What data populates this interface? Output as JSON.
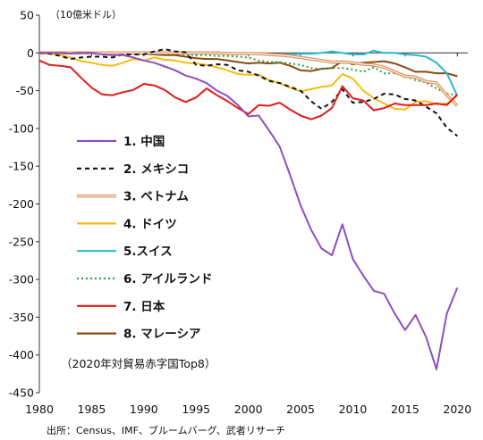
{
  "chart_data": {
    "type": "line",
    "unit_label": "（10億米ドル）",
    "note": "（2020年対貿易赤字国Top8）",
    "source": "出所：Census、IMF、ブルームバーグ、武者リサーチ",
    "xlim": [
      1980,
      2021
    ],
    "ylim": [
      -450,
      50
    ],
    "x_ticks": [
      "1980",
      "1985",
      "1990",
      "1995",
      "2000",
      "2005",
      "2010",
      "2015",
      "2020"
    ],
    "y_ticks": [
      "50",
      "0",
      "-50",
      "-100",
      "-150",
      "-200",
      "-250",
      "-300",
      "-350",
      "-400",
      "-450"
    ],
    "grid": false,
    "legend_position": "middle-left",
    "years": [
      1980,
      1981,
      1982,
      1983,
      1984,
      1985,
      1986,
      1987,
      1988,
      1989,
      1990,
      1991,
      1992,
      1993,
      1994,
      1995,
      1996,
      1997,
      1998,
      1999,
      2000,
      2001,
      2002,
      2003,
      2004,
      2005,
      2006,
      2007,
      2008,
      2009,
      2010,
      2011,
      2012,
      2013,
      2014,
      2015,
      2016,
      2017,
      2018,
      2019,
      2020
    ],
    "series": [
      {
        "name": "1. 中国",
        "color": "#8e4fbf",
        "dash": "solid",
        "values": [
          0,
          0,
          0,
          -1,
          0,
          0,
          -2,
          -3,
          -3,
          -6,
          -10,
          -13,
          -18,
          -23,
          -30,
          -34,
          -40,
          -50,
          -57,
          -69,
          -84,
          -83,
          -103,
          -124,
          -162,
          -202,
          -234,
          -259,
          -268,
          -227,
          -273,
          -295,
          -315,
          -319,
          -345,
          -367,
          -347,
          -376,
          -419,
          -345,
          -311
        ]
      },
      {
        "name": "2. メキシコ",
        "color": "#111111",
        "dash": "5,4",
        "values": [
          0,
          -1,
          -4,
          -8,
          -6,
          -5,
          -5,
          -6,
          -2,
          -2,
          -2,
          2,
          5,
          2,
          1,
          -16,
          -17,
          -15,
          -16,
          -23,
          -25,
          -30,
          -37,
          -40,
          -45,
          -50,
          -64,
          -74,
          -65,
          -48,
          -66,
          -65,
          -61,
          -54,
          -55,
          -61,
          -63,
          -71,
          -80,
          -99,
          -110
        ]
      },
      {
        "name": "3. ベトナム",
        "color": "#d9925a",
        "dash": "double",
        "values": [
          0,
          0,
          0,
          0,
          0,
          0,
          0,
          0,
          0,
          0,
          0,
          0,
          0,
          0,
          0,
          0,
          0,
          0,
          -1,
          -1,
          -1,
          -1,
          -2,
          -3,
          -4,
          -6,
          -8,
          -10,
          -12,
          -12,
          -13,
          -15,
          -16,
          -19,
          -25,
          -31,
          -32,
          -38,
          -40,
          -56,
          -70
        ]
      },
      {
        "name": "4. ドイツ",
        "color": "#f5bc10",
        "dash": "solid",
        "values": [
          -1,
          -1,
          -3,
          -6,
          -11,
          -13,
          -16,
          -17,
          -13,
          -8,
          -10,
          -6,
          -9,
          -10,
          -13,
          -14,
          -16,
          -19,
          -23,
          -28,
          -29,
          -29,
          -36,
          -40,
          -46,
          -51,
          -48,
          -45,
          -43,
          -28,
          -34,
          -50,
          -60,
          -67,
          -74,
          -75,
          -65,
          -64,
          -68,
          -67,
          -57
        ]
      },
      {
        "name": "5.スイス",
        "color": "#2bb6d6",
        "dash": "solid",
        "values": [
          1,
          0,
          0,
          0,
          0,
          0,
          0,
          -1,
          -1,
          0,
          0,
          0,
          0,
          0,
          0,
          0,
          0,
          0,
          0,
          -1,
          -1,
          -1,
          -2,
          -2,
          -2,
          -1,
          -1,
          0,
          2,
          0,
          -2,
          -2,
          3,
          0,
          0,
          -2,
          -3,
          -5,
          -13,
          -27,
          -57
        ]
      },
      {
        "name": "6. アイルランド",
        "color": "#28a745",
        "dash": "2,3",
        "values": [
          0,
          0,
          0,
          0,
          0,
          0,
          0,
          0,
          0,
          0,
          -1,
          -1,
          -1,
          -1,
          -2,
          -3,
          -3,
          -4,
          -4,
          -5,
          -6,
          -10,
          -12,
          -12,
          -14,
          -16,
          -20,
          -21,
          -20,
          -20,
          -22,
          -25,
          -19,
          -27,
          -27,
          -30,
          -36,
          -39,
          -47,
          -54,
          -56
        ]
      },
      {
        "name": "7. 日本",
        "color": "#e31a1a",
        "dash": "solid",
        "values": [
          -10,
          -16,
          -17,
          -19,
          -33,
          -46,
          -55,
          -56,
          -52,
          -49,
          -41,
          -43,
          -49,
          -59,
          -65,
          -59,
          -47,
          -56,
          -64,
          -73,
          -81,
          -69,
          -70,
          -66,
          -75,
          -83,
          -88,
          -83,
          -73,
          -44,
          -60,
          -63,
          -76,
          -73,
          -67,
          -69,
          -69,
          -69,
          -67,
          -69,
          -55
        ]
      },
      {
        "name": "8. マレーシア",
        "color": "#8b4a12",
        "dash": "solid",
        "values": [
          0,
          0,
          0,
          0,
          0,
          0,
          0,
          0,
          -1,
          -1,
          -1,
          -2,
          -3,
          -3,
          -5,
          -7,
          -8,
          -8,
          -10,
          -12,
          -14,
          -13,
          -14,
          -13,
          -17,
          -23,
          -24,
          -21,
          -20,
          -11,
          -15,
          -13,
          -12,
          -11,
          -14,
          -19,
          -25,
          -25,
          -27,
          -27,
          -31
        ]
      }
    ]
  }
}
